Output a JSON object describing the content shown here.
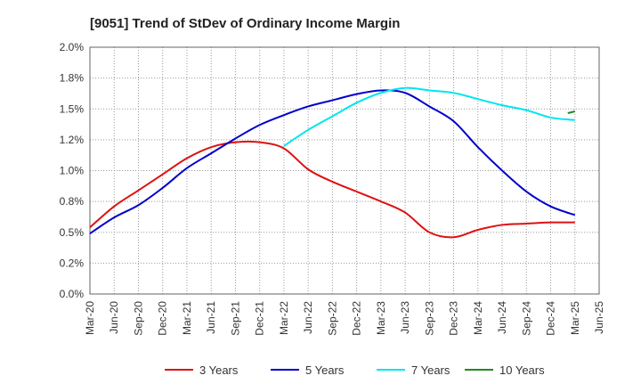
{
  "title": "[9051]  Trend of StDev of Ordinary Income Margin",
  "chart_data": {
    "type": "line",
    "title": "[9051]  Trend of StDev of Ordinary Income Margin",
    "xlabel": "",
    "ylabel": "",
    "ylim": [
      0,
      2.0
    ],
    "y_ticks": [
      "0.0%",
      "0.2%",
      "0.5%",
      "0.8%",
      "1.0%",
      "1.2%",
      "1.5%",
      "1.8%",
      "2.0%"
    ],
    "y_tick_values": [
      0,
      0.25,
      0.5,
      0.75,
      1.0,
      1.25,
      1.5,
      1.75,
      2.0
    ],
    "categories": [
      "Mar-20",
      "Jun-20",
      "Sep-20",
      "Dec-20",
      "Mar-21",
      "Jun-21",
      "Sep-21",
      "Dec-21",
      "Mar-22",
      "Jun-22",
      "Sep-22",
      "Dec-22",
      "Mar-23",
      "Jun-23",
      "Sep-23",
      "Dec-23",
      "Mar-24",
      "Jun-24",
      "Sep-24",
      "Dec-24",
      "Mar-25",
      "Jun-25"
    ],
    "grid": true,
    "legend_position": "bottom",
    "series": [
      {
        "name": "3 Years",
        "color": "#dd1111",
        "values": [
          0.54,
          0.71,
          0.84,
          0.97,
          1.1,
          1.19,
          1.23,
          1.23,
          1.18,
          1.01,
          0.91,
          0.83,
          0.75,
          0.66,
          0.5,
          0.46,
          0.52,
          0.56,
          0.57,
          0.58,
          0.58,
          null
        ]
      },
      {
        "name": "5 Years",
        "color": "#0000cc",
        "values": [
          0.49,
          0.62,
          0.72,
          0.86,
          1.02,
          1.14,
          1.26,
          1.37,
          1.45,
          1.52,
          1.57,
          1.62,
          1.65,
          1.63,
          1.52,
          1.4,
          1.19,
          1.0,
          0.83,
          0.71,
          0.64,
          null
        ]
      },
      {
        "name": "7 Years",
        "color": "#00e5ee",
        "values": [
          null,
          null,
          null,
          null,
          null,
          null,
          null,
          null,
          1.2,
          1.33,
          1.44,
          1.55,
          1.63,
          1.67,
          1.65,
          1.63,
          1.58,
          1.53,
          1.49,
          1.43,
          1.41,
          null
        ]
      },
      {
        "name": "10 Years",
        "color": "#228822",
        "values": [
          null,
          null,
          null,
          null,
          null,
          null,
          null,
          null,
          null,
          null,
          null,
          null,
          null,
          null,
          null,
          null,
          null,
          null,
          null,
          null,
          1.48,
          null
        ]
      }
    ]
  }
}
